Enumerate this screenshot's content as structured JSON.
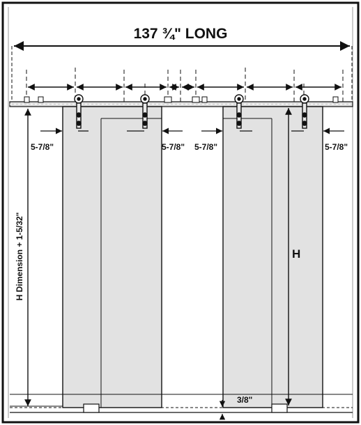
{
  "diagram": {
    "title": "137 ¾\" LONG",
    "offset_labels": [
      "5-7/8\"",
      "5-7/8\"",
      "5-7/8\"",
      "5-7/8\""
    ],
    "height_label": "H",
    "overall_height_label": "H Dimension + 1-5/32\"",
    "floor_gap_label": "3/8\"",
    "colors": {
      "door_fill": "#e2e2e2",
      "line": "#111111",
      "rail": "#dcdcdc",
      "background": "#ffffff"
    }
  }
}
